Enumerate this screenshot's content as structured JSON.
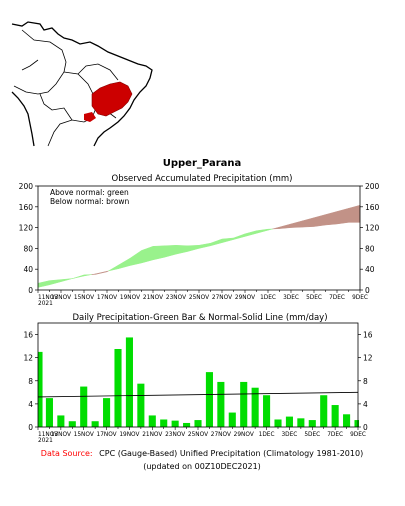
{
  "region_name": "Upper_Parana",
  "footer": {
    "source_label": "Data Source:",
    "source_text": "CPC (Gauge-Based) Unified Precipitation (Climatology 1981-2010)",
    "updated": "(updated on 00Z10DEC2021)",
    "source_label_color": "#ff0000"
  },
  "colors": {
    "above_normal": "#99f28c",
    "below_normal": "#c29287",
    "bar": "#00dd00",
    "map_region": "#cc0000"
  },
  "x_tick_labels": [
    "11NOV",
    "13NOV",
    "15NOV",
    "17NOV",
    "19NOV",
    "21NOV",
    "23NOV",
    "25NOV",
    "27NOV",
    "29NOV",
    "1DEC",
    "3DEC",
    "5DEC",
    "7DEC",
    "9DEC"
  ],
  "x_first_year": "2021",
  "chart_data": [
    {
      "type": "area",
      "title": "Observed Accumulated Precipitation (mm)",
      "legend": [
        "Above normal: green",
        "Below normal: brown"
      ],
      "legend_placement": "top-left",
      "ylim": [
        0,
        200
      ],
      "yticks": [
        0,
        40,
        80,
        120,
        160,
        200
      ],
      "y2ticks": [
        0,
        40,
        80,
        120,
        160,
        200
      ],
      "x_start": "2021-11-11",
      "x_end": "2021-12-09",
      "x": [
        "11NOV",
        "12NOV",
        "13NOV",
        "14NOV",
        "15NOV",
        "16NOV",
        "17NOV",
        "18NOV",
        "19NOV",
        "20NOV",
        "21NOV",
        "22NOV",
        "23NOV",
        "24NOV",
        "25NOV",
        "26NOV",
        "27NOV",
        "28NOV",
        "29NOV",
        "30NOV",
        "1DEC",
        "2DEC",
        "3DEC",
        "4DEC",
        "5DEC",
        "6DEC",
        "7DEC",
        "8DEC",
        "9DEC"
      ],
      "series": [
        {
          "name": "Observed",
          "values": [
            13,
            18,
            20,
            22,
            29,
            30,
            35,
            48,
            61,
            76,
            84,
            85,
            86,
            85,
            86,
            90,
            98,
            100,
            108,
            114,
            117,
            118,
            120,
            121,
            122,
            125,
            127,
            130,
            130
          ]
        },
        {
          "name": "Normal",
          "values": [
            5,
            10,
            16,
            22,
            27,
            31,
            36,
            41,
            47,
            52,
            58,
            63,
            69,
            74,
            80,
            85,
            91,
            97,
            103,
            109,
            115,
            121,
            127,
            133,
            139,
            145,
            151,
            157,
            163
          ]
        }
      ]
    },
    {
      "type": "bar",
      "title": "Daily Precipitation-Green Bar & Normal-Solid Line (mm/day)",
      "ylim": [
        0,
        18
      ],
      "yticks": [
        0,
        4,
        8,
        12,
        16
      ],
      "y2ticks": [
        0,
        4,
        8,
        12,
        16
      ],
      "categories": [
        "11NOV",
        "12NOV",
        "13NOV",
        "14NOV",
        "15NOV",
        "16NOV",
        "17NOV",
        "18NOV",
        "19NOV",
        "20NOV",
        "21NOV",
        "22NOV",
        "23NOV",
        "24NOV",
        "25NOV",
        "26NOV",
        "27NOV",
        "28NOV",
        "29NOV",
        "30NOV",
        "1DEC",
        "2DEC",
        "3DEC",
        "4DEC",
        "5DEC",
        "6DEC",
        "7DEC",
        "8DEC",
        "9DEC"
      ],
      "values": [
        13,
        5,
        2,
        1,
        7,
        1,
        5,
        13.5,
        15.5,
        7.5,
        2,
        1.3,
        1.1,
        0.7,
        1.2,
        9.5,
        7.8,
        2.5,
        7.8,
        6.8,
        5.5,
        1.3,
        1.8,
        1.5,
        1.2,
        5.5,
        3.8,
        2.2,
        1.2
      ],
      "normal_line": [
        5.2,
        6.0
      ]
    }
  ]
}
